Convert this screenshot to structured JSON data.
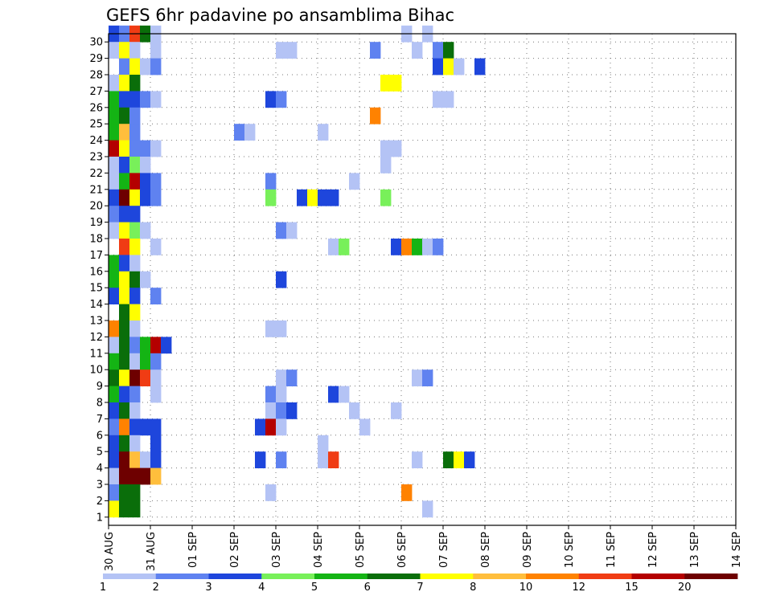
{
  "chart_data": {
    "type": "heatmap",
    "title": "GEFS 6hr padavine po ansamblima Bihac",
    "xlabel": "",
    "ylabel": "",
    "y_ticks": [
      "1",
      "2",
      "3",
      "4",
      "5",
      "6",
      "7",
      "8",
      "9",
      "10",
      "11",
      "12",
      "13",
      "14",
      "15",
      "16",
      "17",
      "18",
      "19",
      "20",
      "21",
      "22",
      "23",
      "24",
      "25",
      "26",
      "27",
      "28",
      "29",
      "30"
    ],
    "x_ticks": [
      "30 AUG",
      "31 AUG",
      "01 SEP",
      "02 SEP",
      "03 SEP",
      "04 SEP",
      "05 SEP",
      "06 SEP",
      "07 SEP",
      "08 SEP",
      "09 SEP",
      "10 SEP",
      "11 SEP",
      "12 SEP",
      "13 SEP",
      "14 SEP"
    ],
    "x_step_hours": 6,
    "n_steps": 61,
    "grid": true,
    "legend": {
      "placement": "bottom",
      "labels": [
        "1",
        "2",
        "3",
        "4",
        "5",
        "6",
        "7",
        "8",
        "10",
        "12",
        "15",
        "20"
      ],
      "colors": [
        "#b4c3f5",
        "#5f82f0",
        "#1e46dc",
        "#78f05a",
        "#14b414",
        "#0a6e0a",
        "#ffff00",
        "#ffbe3c",
        "#ff8200",
        "#f03c14",
        "#b40000",
        "#6e0000"
      ]
    },
    "cells": [
      [
        30,
        0,
        2
      ],
      [
        30,
        1,
        1
      ],
      [
        30,
        2,
        9
      ],
      [
        30,
        3,
        5
      ],
      [
        30,
        4,
        0
      ],
      [
        30,
        28,
        0
      ],
      [
        30,
        30,
        0
      ],
      [
        29,
        0,
        0
      ],
      [
        29,
        1,
        6
      ],
      [
        29,
        2,
        0
      ],
      [
        29,
        4,
        0
      ],
      [
        29,
        16,
        0
      ],
      [
        29,
        17,
        0
      ],
      [
        29,
        25,
        1
      ],
      [
        29,
        29,
        0
      ],
      [
        29,
        31,
        1
      ],
      [
        29,
        32,
        5
      ],
      [
        28,
        1,
        1
      ],
      [
        28,
        2,
        6
      ],
      [
        28,
        3,
        0
      ],
      [
        28,
        4,
        1
      ],
      [
        28,
        31,
        2
      ],
      [
        28,
        32,
        6
      ],
      [
        28,
        33,
        0
      ],
      [
        28,
        35,
        2
      ],
      [
        27,
        0,
        0
      ],
      [
        27,
        1,
        6
      ],
      [
        27,
        2,
        5
      ],
      [
        27,
        26,
        6
      ],
      [
        27,
        27,
        6
      ],
      [
        26,
        0,
        4
      ],
      [
        26,
        1,
        2
      ],
      [
        26,
        2,
        2
      ],
      [
        26,
        3,
        1
      ],
      [
        26,
        4,
        0
      ],
      [
        26,
        15,
        2
      ],
      [
        26,
        16,
        1
      ],
      [
        26,
        31,
        0
      ],
      [
        26,
        32,
        0
      ],
      [
        25,
        0,
        4
      ],
      [
        25,
        1,
        5
      ],
      [
        25,
        2,
        1
      ],
      [
        25,
        25,
        8
      ],
      [
        24,
        0,
        4
      ],
      [
        24,
        1,
        7
      ],
      [
        24,
        2,
        1
      ],
      [
        24,
        12,
        1
      ],
      [
        24,
        13,
        0
      ],
      [
        24,
        20,
        0
      ],
      [
        23,
        0,
        10
      ],
      [
        23,
        1,
        6
      ],
      [
        23,
        2,
        1
      ],
      [
        23,
        3,
        1
      ],
      [
        23,
        4,
        0
      ],
      [
        23,
        26,
        0
      ],
      [
        23,
        27,
        0
      ],
      [
        22,
        0,
        0
      ],
      [
        22,
        1,
        2
      ],
      [
        22,
        2,
        3
      ],
      [
        22,
        3,
        0
      ],
      [
        22,
        26,
        0
      ],
      [
        21,
        0,
        0
      ],
      [
        21,
        1,
        4
      ],
      [
        21,
        2,
        10
      ],
      [
        21,
        3,
        2
      ],
      [
        21,
        4,
        1
      ],
      [
        21,
        15,
        1
      ],
      [
        21,
        23,
        0
      ],
      [
        20,
        0,
        2
      ],
      [
        20,
        1,
        11
      ],
      [
        20,
        2,
        6
      ],
      [
        20,
        3,
        2
      ],
      [
        20,
        4,
        1
      ],
      [
        20,
        15,
        3
      ],
      [
        20,
        18,
        2
      ],
      [
        20,
        19,
        6
      ],
      [
        20,
        20,
        2
      ],
      [
        20,
        21,
        2
      ],
      [
        20,
        26,
        3
      ],
      [
        19,
        0,
        1
      ],
      [
        19,
        1,
        2
      ],
      [
        19,
        2,
        2
      ],
      [
        18,
        0,
        0
      ],
      [
        18,
        1,
        6
      ],
      [
        18,
        2,
        3
      ],
      [
        18,
        3,
        0
      ],
      [
        18,
        16,
        1
      ],
      [
        18,
        17,
        0
      ],
      [
        17,
        1,
        9
      ],
      [
        17,
        2,
        6
      ],
      [
        17,
        4,
        0
      ],
      [
        17,
        21,
        0
      ],
      [
        17,
        22,
        3
      ],
      [
        17,
        27,
        2
      ],
      [
        17,
        28,
        8
      ],
      [
        17,
        29,
        4
      ],
      [
        17,
        30,
        0
      ],
      [
        17,
        31,
        1
      ],
      [
        16,
        0,
        4
      ],
      [
        16,
        1,
        2
      ],
      [
        16,
        2,
        0
      ],
      [
        15,
        0,
        4
      ],
      [
        15,
        1,
        6
      ],
      [
        15,
        2,
        5
      ],
      [
        15,
        3,
        0
      ],
      [
        15,
        16,
        2
      ],
      [
        14,
        0,
        2
      ],
      [
        14,
        1,
        6
      ],
      [
        14,
        2,
        2
      ],
      [
        14,
        4,
        1
      ],
      [
        13,
        1,
        5
      ],
      [
        13,
        2,
        6
      ],
      [
        12,
        0,
        8
      ],
      [
        12,
        1,
        5
      ],
      [
        12,
        2,
        0
      ],
      [
        12,
        15,
        0
      ],
      [
        12,
        16,
        0
      ],
      [
        11,
        0,
        0
      ],
      [
        11,
        1,
        5
      ],
      [
        11,
        2,
        1
      ],
      [
        11,
        3,
        4
      ],
      [
        11,
        4,
        10
      ],
      [
        11,
        5,
        2
      ],
      [
        10,
        0,
        4
      ],
      [
        10,
        1,
        5
      ],
      [
        10,
        2,
        0
      ],
      [
        10,
        3,
        4
      ],
      [
        10,
        4,
        1
      ],
      [
        9,
        0,
        5
      ],
      [
        9,
        1,
        6
      ],
      [
        9,
        2,
        11
      ],
      [
        9,
        3,
        9
      ],
      [
        9,
        4,
        0
      ],
      [
        9,
        16,
        0
      ],
      [
        9,
        17,
        1
      ],
      [
        9,
        29,
        0
      ],
      [
        9,
        30,
        1
      ],
      [
        8,
        0,
        4
      ],
      [
        8,
        1,
        2
      ],
      [
        8,
        2,
        1
      ],
      [
        8,
        4,
        0
      ],
      [
        8,
        15,
        1
      ],
      [
        8,
        16,
        0
      ],
      [
        8,
        21,
        2
      ],
      [
        8,
        22,
        0
      ],
      [
        7,
        0,
        2
      ],
      [
        7,
        1,
        5
      ],
      [
        7,
        2,
        0
      ],
      [
        7,
        15,
        0
      ],
      [
        7,
        16,
        1
      ],
      [
        7,
        17,
        2
      ],
      [
        7,
        23,
        0
      ],
      [
        7,
        27,
        0
      ],
      [
        6,
        0,
        1
      ],
      [
        6,
        1,
        8
      ],
      [
        6,
        2,
        2
      ],
      [
        6,
        3,
        2
      ],
      [
        6,
        4,
        2
      ],
      [
        6,
        14,
        2
      ],
      [
        6,
        15,
        10
      ],
      [
        6,
        16,
        0
      ],
      [
        6,
        24,
        0
      ],
      [
        5,
        0,
        2
      ],
      [
        5,
        1,
        5
      ],
      [
        5,
        2,
        0
      ],
      [
        5,
        4,
        2
      ],
      [
        5,
        20,
        0
      ],
      [
        4,
        0,
        2
      ],
      [
        4,
        1,
        11
      ],
      [
        4,
        2,
        7
      ],
      [
        4,
        3,
        0
      ],
      [
        4,
        4,
        2
      ],
      [
        4,
        14,
        2
      ],
      [
        4,
        16,
        1
      ],
      [
        4,
        20,
        0
      ],
      [
        4,
        21,
        9
      ],
      [
        4,
        29,
        0
      ],
      [
        4,
        32,
        5
      ],
      [
        4,
        33,
        6
      ],
      [
        4,
        34,
        2
      ],
      [
        3,
        0,
        0
      ],
      [
        3,
        1,
        11
      ],
      [
        3,
        2,
        11
      ],
      [
        3,
        3,
        11
      ],
      [
        3,
        4,
        7
      ],
      [
        2,
        0,
        1
      ],
      [
        2,
        1,
        5
      ],
      [
        2,
        2,
        5
      ],
      [
        2,
        15,
        0
      ],
      [
        2,
        28,
        8
      ],
      [
        1,
        0,
        6
      ],
      [
        1,
        1,
        5
      ],
      [
        1,
        2,
        5
      ],
      [
        1,
        30,
        0
      ]
    ]
  }
}
